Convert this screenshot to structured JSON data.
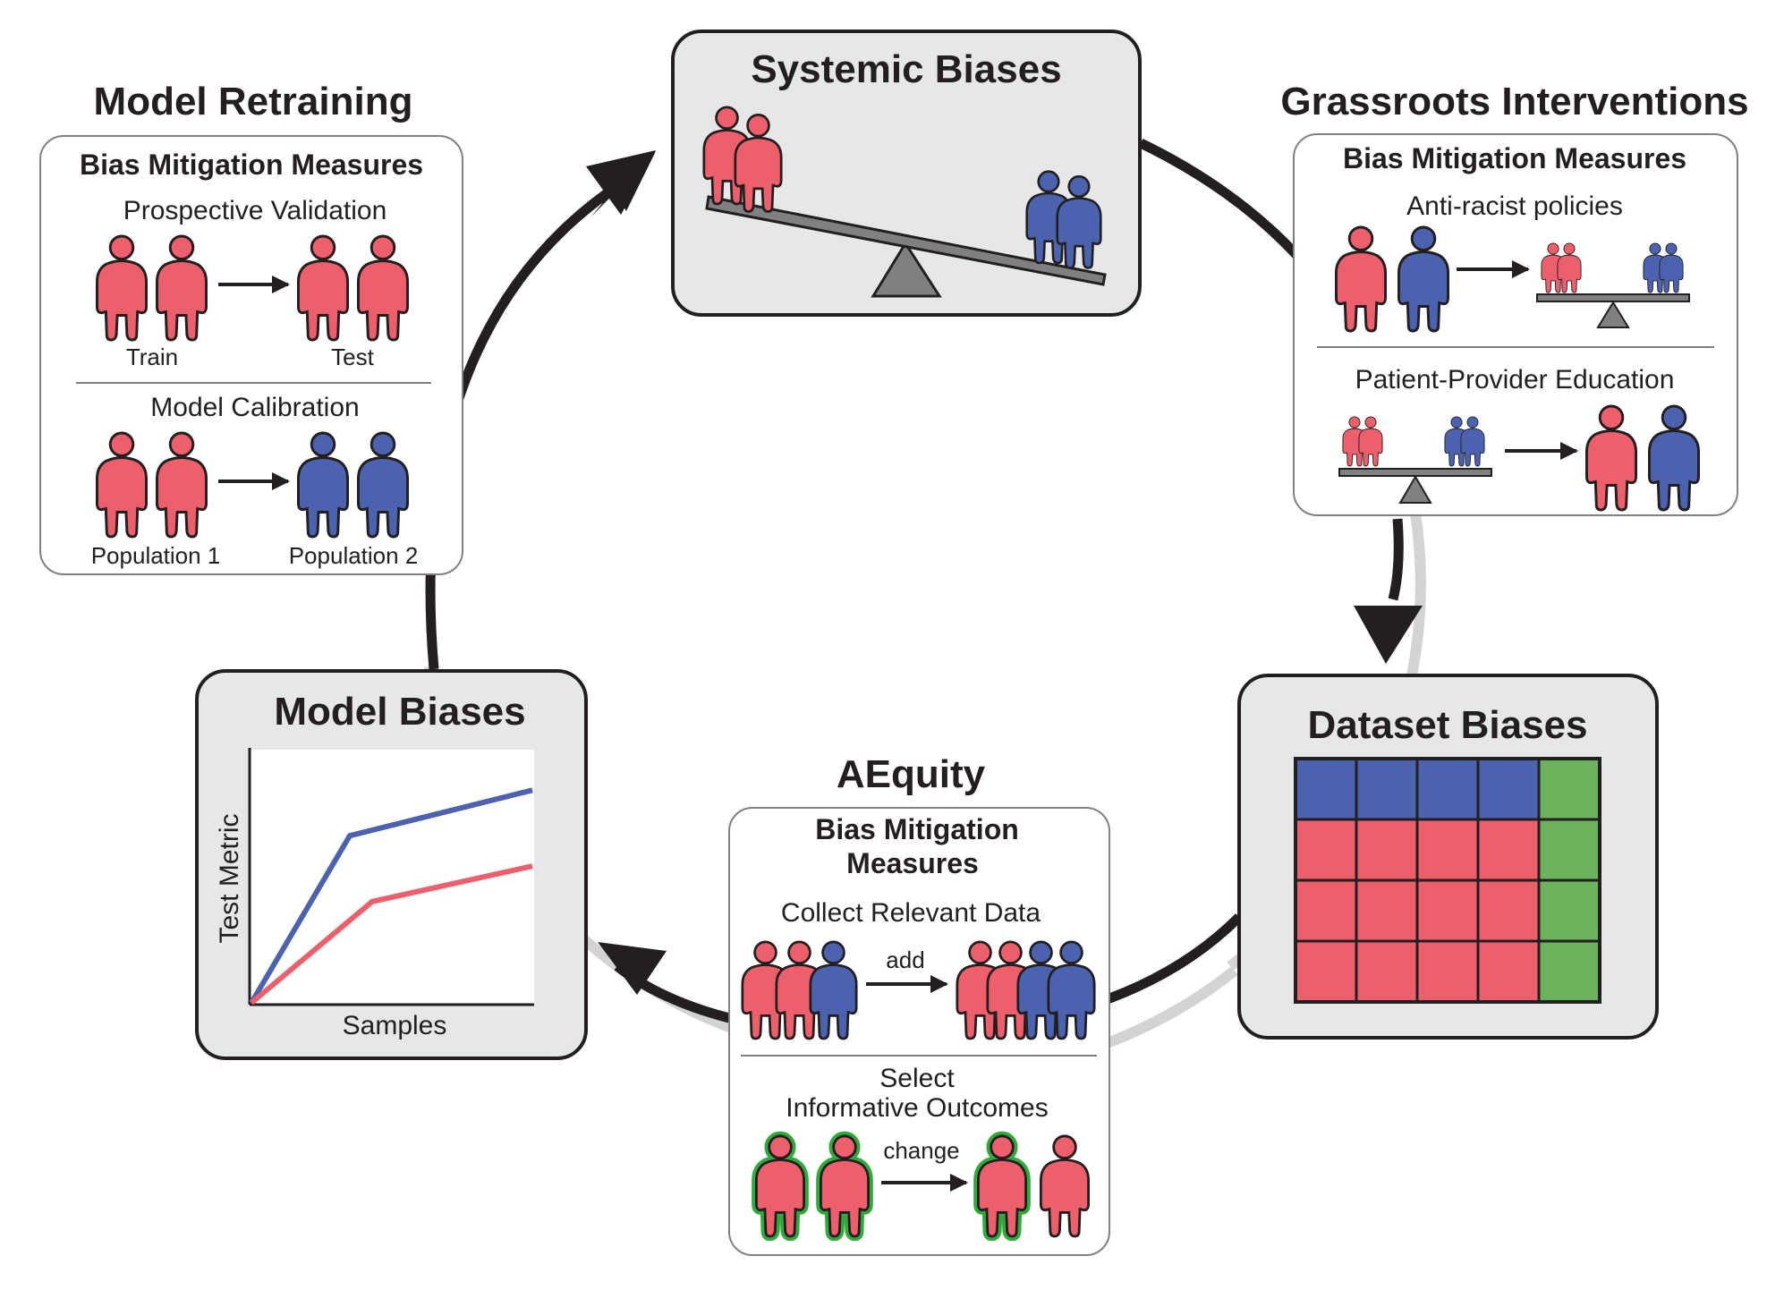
{
  "colors": {
    "red": "#ee5f6c",
    "blue": "#4b63ae",
    "green": "#6db35d",
    "green_outline": "#2fab3c",
    "gray_box": "#e6e7e8",
    "scale_gray": "#808080",
    "ink": "#231f20"
  },
  "systemic": {
    "title": "Systemic Biases"
  },
  "grassroots": {
    "title": "Grassroots Interventions",
    "header": "Bias Mitigation Measures",
    "item1": "Anti-racist policies",
    "item2": "Patient-Provider Education"
  },
  "dataset": {
    "title": "Dataset Biases",
    "grid": [
      [
        "blue",
        "blue",
        "blue",
        "blue",
        "green"
      ],
      [
        "red",
        "red",
        "red",
        "red",
        "green"
      ],
      [
        "red",
        "red",
        "red",
        "red",
        "green"
      ],
      [
        "red",
        "red",
        "red",
        "red",
        "green"
      ]
    ]
  },
  "aequity": {
    "title": "AEquity",
    "header_line1": "Bias Mitigation",
    "header_line2": "Measures",
    "item1": "Collect Relevant Data",
    "item1_arrow": "add",
    "item2_line1": "Select",
    "item2_line2": "Informative Outcomes",
    "item2_arrow": "change"
  },
  "model_biases": {
    "title": "Model Biases",
    "chart_data": {
      "type": "line",
      "title": "",
      "xlabel": "Samples",
      "ylabel": "Test Metric",
      "xlim": [
        0,
        100
      ],
      "ylim": [
        0,
        100
      ],
      "grid": false,
      "series": [
        {
          "color": "#4b63ae",
          "x": [
            0,
            35,
            100
          ],
          "y": [
            0,
            66,
            84
          ]
        },
        {
          "color": "#ee5f6c",
          "x": [
            0,
            43,
            100
          ],
          "y": [
            0,
            40,
            54
          ]
        }
      ]
    }
  },
  "retraining": {
    "title": "Model Retraining",
    "header": "Bias Mitigation Measures",
    "item1": "Prospective Validation",
    "item1_left": "Train",
    "item1_right": "Test",
    "item2": "Model Calibration",
    "item2_left": "Population 1",
    "item2_right": "Population 2"
  }
}
